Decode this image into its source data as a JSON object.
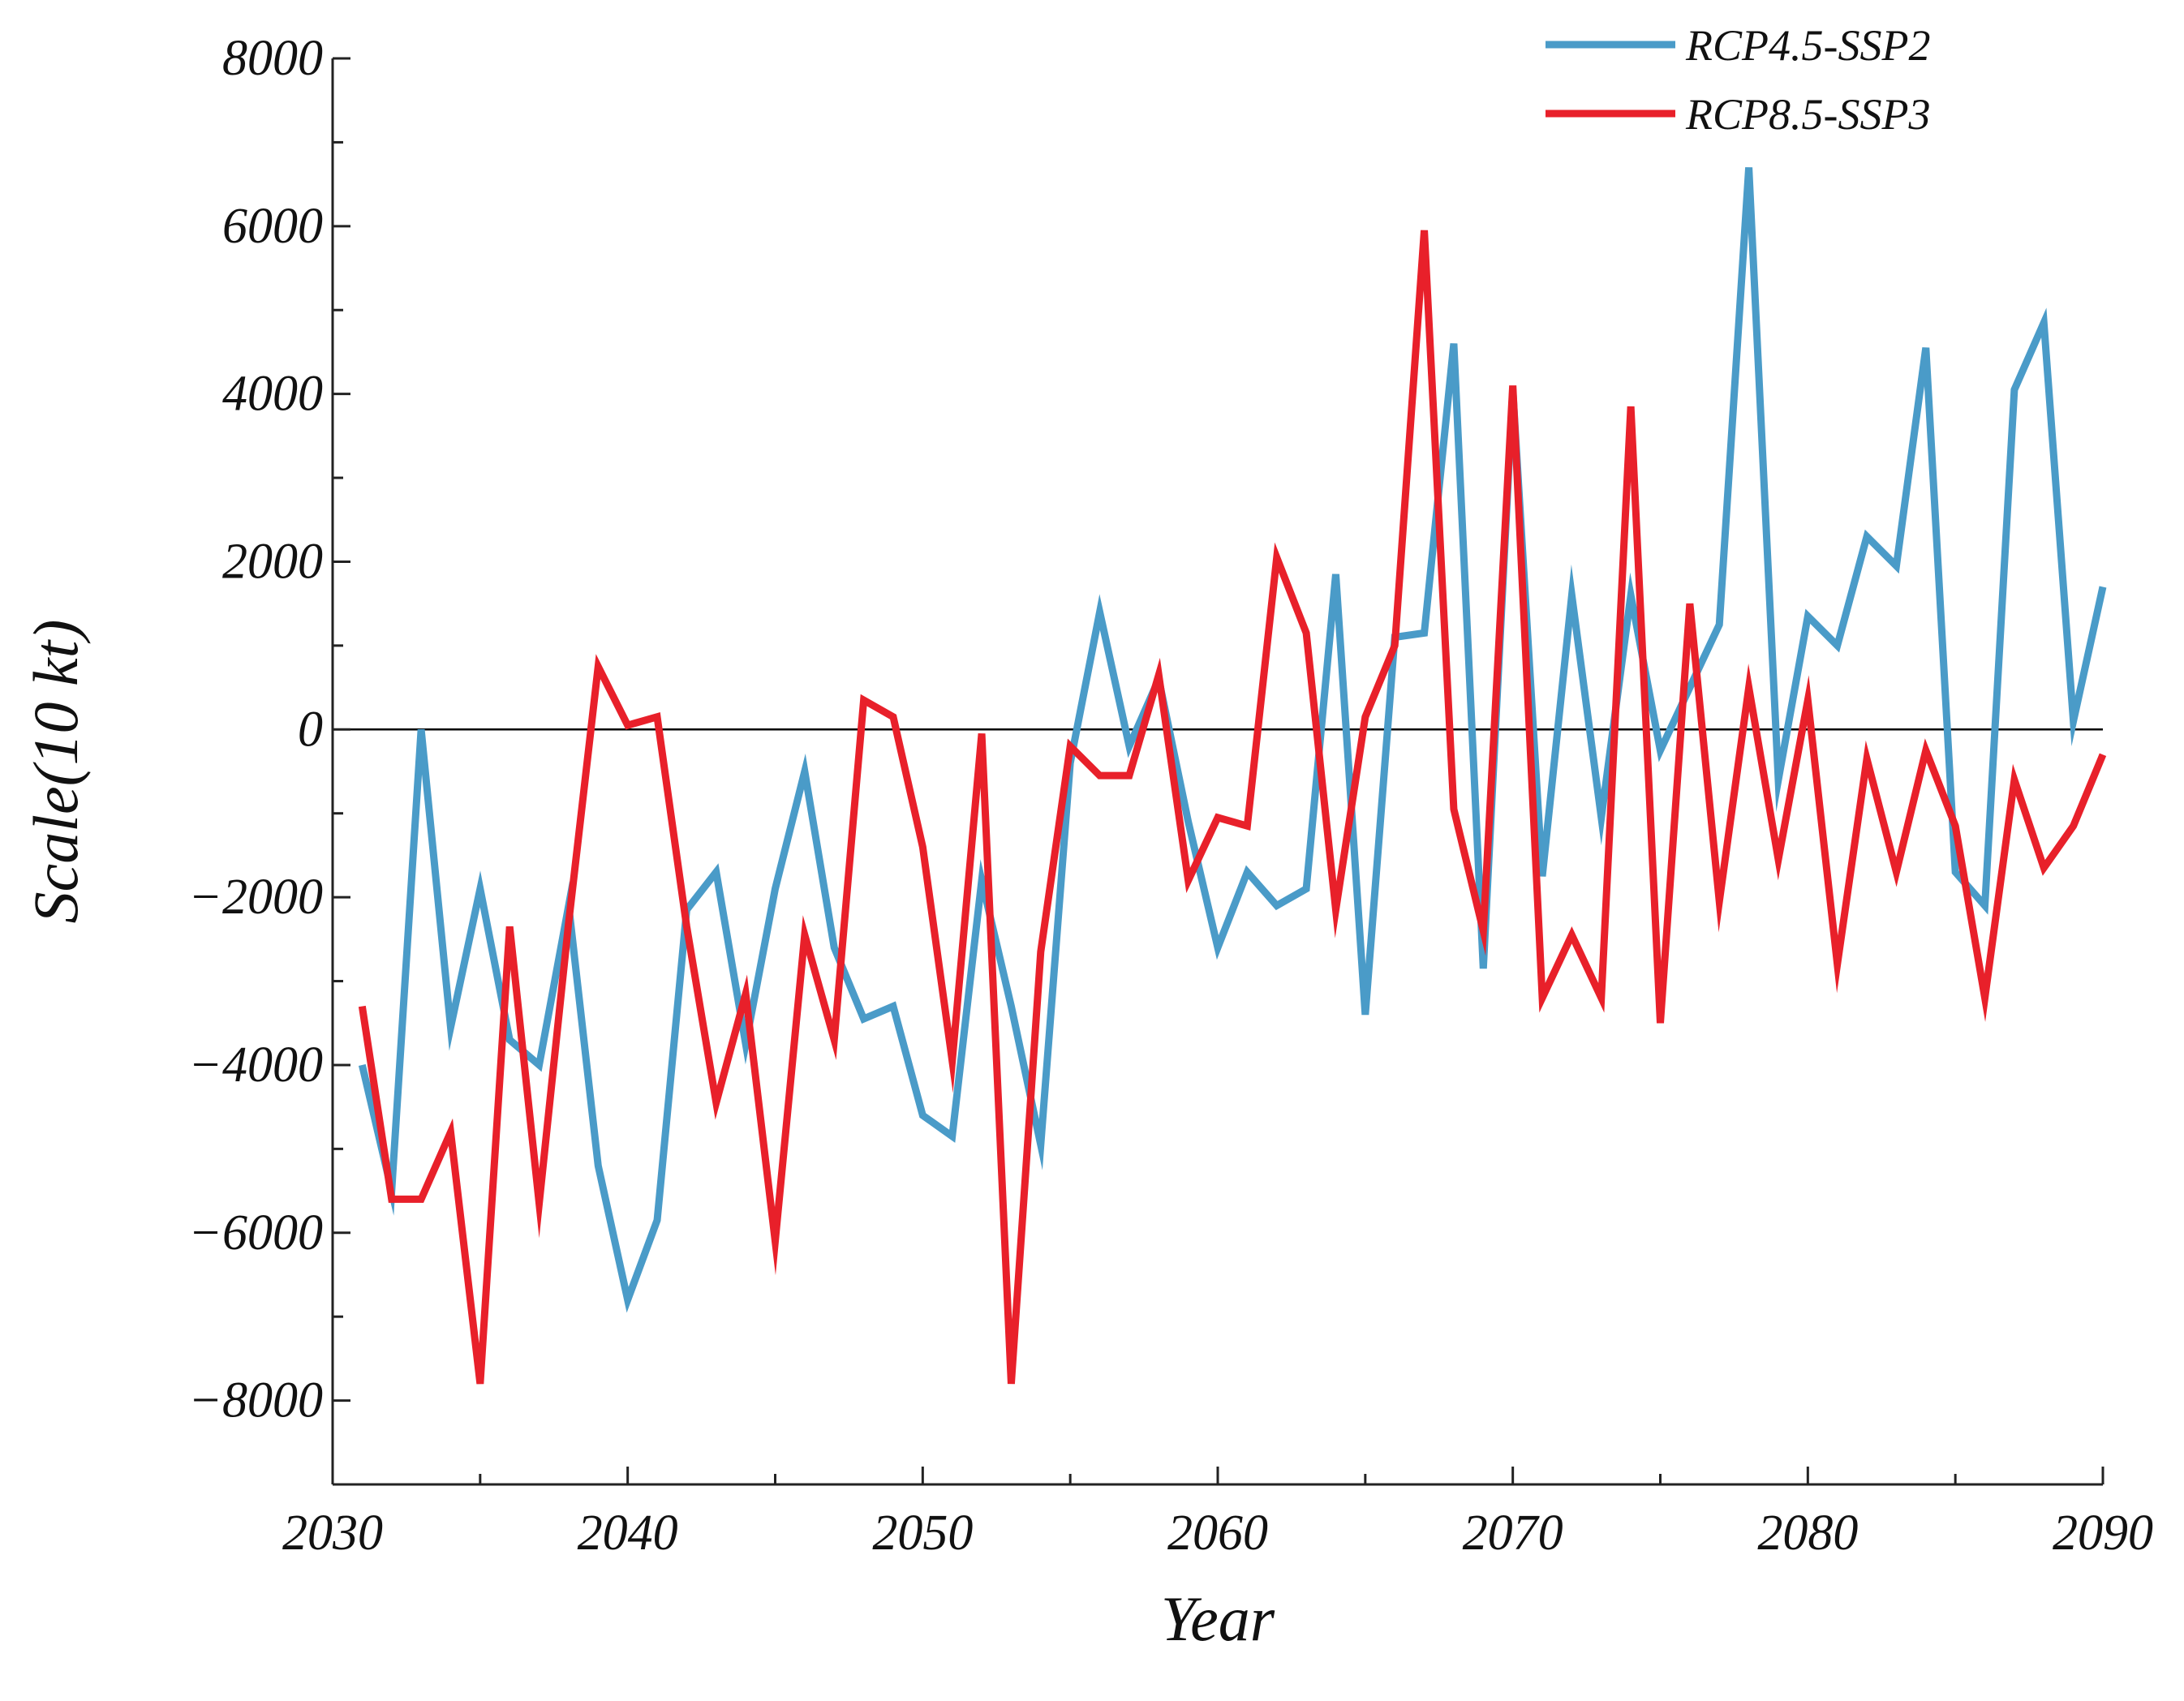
{
  "chart_data": {
    "type": "line",
    "title": "",
    "xlabel": "Year",
    "ylabel": "Scale(10 kt)",
    "xlim": [
      2030,
      2090
    ],
    "ylim": [
      -9000,
      8000
    ],
    "xticks": [
      2030,
      2040,
      2050,
      2060,
      2070,
      2080,
      2090
    ],
    "yticks": [
      -8000,
      -6000,
      -4000,
      -2000,
      0,
      2000,
      4000,
      6000,
      8000
    ],
    "x_tick_labels": [
      "2030",
      "2040",
      "2050",
      "2060",
      "2070",
      "2080",
      "2090"
    ],
    "y_tick_labels": [
      "−8000",
      "−6000",
      "−4000",
      "−2000",
      "0",
      "2000",
      "4000",
      "6000",
      "8000"
    ],
    "zero_line": true,
    "grid": false,
    "legend_position": "top-right",
    "x": [
      2031,
      2032,
      2033,
      2034,
      2035,
      2036,
      2037,
      2038,
      2039,
      2040,
      2041,
      2042,
      2043,
      2044,
      2045,
      2046,
      2047,
      2048,
      2049,
      2050,
      2051,
      2052,
      2053,
      2054,
      2055,
      2056,
      2057,
      2058,
      2059,
      2060,
      2061,
      2062,
      2063,
      2064,
      2065,
      2066,
      2067,
      2068,
      2069,
      2070,
      2071,
      2072,
      2073,
      2074,
      2075,
      2076,
      2077,
      2078,
      2079,
      2080,
      2081,
      2082,
      2083,
      2084,
      2085,
      2086,
      2087,
      2088,
      2089,
      2090
    ],
    "series": [
      {
        "name": "RCP4.5-SSP2",
        "color": "#4a9bc8",
        "values": [
          -4000,
          -5500,
          0,
          -3550,
          -1900,
          -3700,
          -4000,
          -2100,
          -5200,
          -6800,
          -5850,
          -2150,
          -1700,
          -3750,
          -1900,
          -500,
          -2600,
          -3450,
          -3300,
          -4600,
          -4850,
          -1800,
          -3300,
          -4950,
          -400,
          1400,
          -200,
          600,
          -1100,
          -2600,
          -1700,
          -2100,
          -1900,
          1850,
          -3400,
          1100,
          1150,
          4600,
          -2850,
          4050,
          -1750,
          1600,
          -1050,
          1600,
          -250,
          500,
          1250,
          6700,
          -600,
          1350,
          1000,
          2300,
          1950,
          4550,
          -1700,
          -2100,
          4050,
          4850,
          100,
          1700
        ]
      },
      {
        "name": "RCP8.5-SSP3",
        "color": "#e8202a",
        "values": [
          -3300,
          -5600,
          -5600,
          -4800,
          -7800,
          -2350,
          -5650,
          -2300,
          750,
          50,
          150,
          -2350,
          -4450,
          -3150,
          -6100,
          -2450,
          -3700,
          350,
          150,
          -1400,
          -3950,
          -50,
          -7800,
          -2650,
          -200,
          -550,
          -550,
          650,
          -1800,
          -1050,
          -1150,
          2050,
          1150,
          -2150,
          150,
          1000,
          5950,
          -950,
          -2400,
          4100,
          -3200,
          -2450,
          -3200,
          3850,
          -3500,
          1500,
          -2050,
          500,
          -1550,
          350,
          -2800,
          -350,
          -1700,
          -250,
          -1150,
          -3200,
          -600,
          -1650,
          -1150,
          -300
        ]
      }
    ]
  }
}
